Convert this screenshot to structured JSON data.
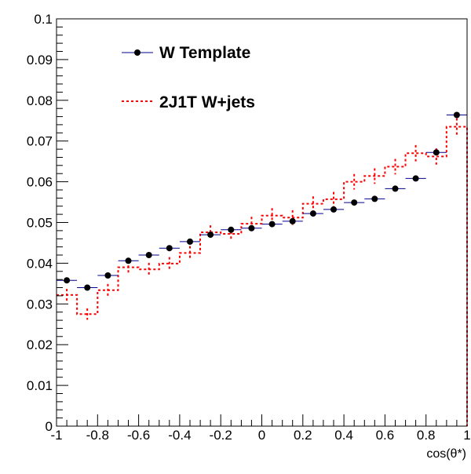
{
  "chart_data": {
    "type": "histogram",
    "xlabel": "cos(θ*)",
    "ylabel": "",
    "xlim": [
      -1,
      1
    ],
    "ylim": [
      0,
      0.1
    ],
    "x_ticks": [
      "-1",
      "-0.8",
      "-0.6",
      "-0.4",
      "-0.2",
      "0",
      "0.2",
      "0.4",
      "0.6",
      "0.8",
      "1"
    ],
    "y_ticks": [
      "0",
      "0.01",
      "0.02",
      "0.03",
      "0.04",
      "0.05",
      "0.06",
      "0.07",
      "0.08",
      "0.09",
      "0.1"
    ],
    "bin_edges": [
      -1,
      -0.9,
      -0.8,
      -0.7,
      -0.6,
      -0.5,
      -0.4,
      -0.3,
      -0.2,
      -0.1,
      0,
      0.1,
      0.2,
      0.3,
      0.4,
      0.5,
      0.6,
      0.7,
      0.8,
      0.9,
      1
    ],
    "grid": false,
    "legend_position": "top-left",
    "series": [
      {
        "name": "W Template",
        "style": "markers",
        "color": "#000000",
        "error_color": "#00008b",
        "values": [
          0.0358,
          0.034,
          0.037,
          0.0406,
          0.042,
          0.0437,
          0.0453,
          0.047,
          0.0482,
          0.0486,
          0.0496,
          0.0503,
          0.0522,
          0.0532,
          0.0549,
          0.0558,
          0.0583,
          0.0608,
          0.0672,
          0.0764
        ]
      },
      {
        "name": "2J1T W+jets",
        "style": "dashed-step",
        "color": "#ff0000",
        "values": [
          0.0322,
          0.0275,
          0.0334,
          0.039,
          0.0385,
          0.0399,
          0.0425,
          0.0476,
          0.0472,
          0.0497,
          0.0517,
          0.0512,
          0.0546,
          0.0557,
          0.06,
          0.0614,
          0.0637,
          0.067,
          0.0662,
          0.0735
        ],
        "errors": [
          0.0015,
          0.0014,
          0.0015,
          0.0016,
          0.0016,
          0.0016,
          0.0017,
          0.0017,
          0.0017,
          0.0017,
          0.0018,
          0.0018,
          0.0018,
          0.0018,
          0.0019,
          0.0019,
          0.0019,
          0.002,
          0.002,
          0.0021
        ]
      }
    ]
  }
}
